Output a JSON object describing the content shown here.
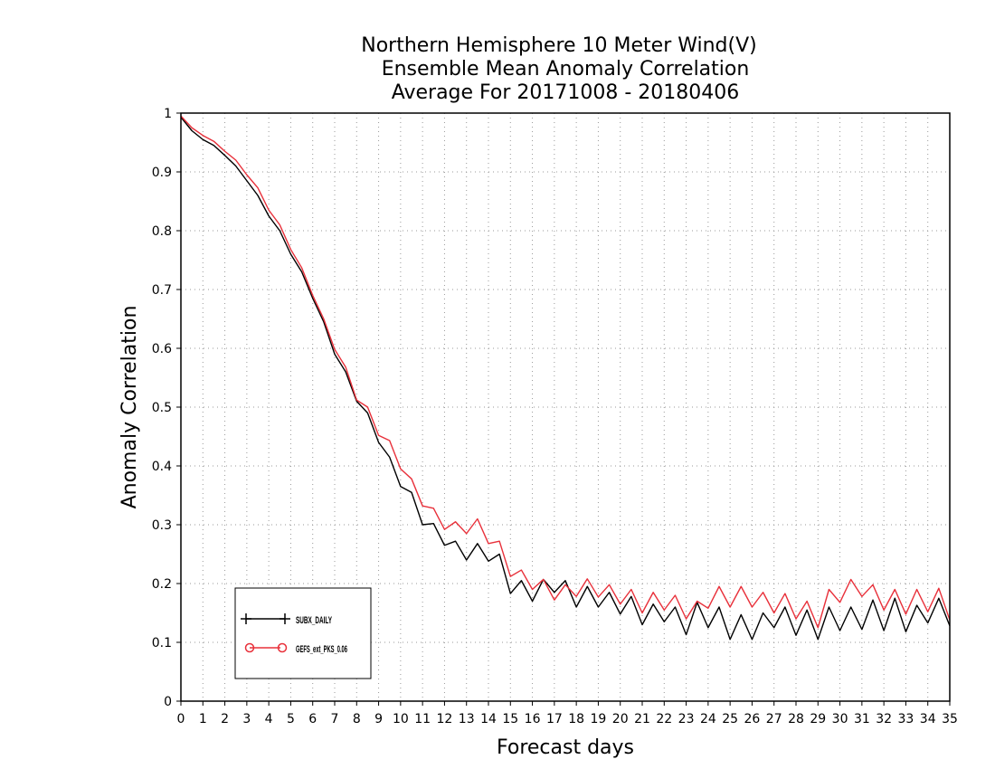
{
  "chart_data": {
    "type": "line",
    "title_lines": [
      "Northern Hemisphere 10 Meter Wind(V)",
      "Ensemble Mean Anomaly Correlation",
      "Average For 20171008 - 20180406"
    ],
    "xlabel": "Forecast days",
    "ylabel": "Anomaly Correlation",
    "xlim": [
      0,
      35
    ],
    "ylim": [
      0,
      1
    ],
    "x_ticks": [
      "0",
      "1",
      "2",
      "3",
      "4",
      "5",
      "6",
      "7",
      "8",
      "9",
      "10",
      "11",
      "12",
      "13",
      "14",
      "15",
      "16",
      "17",
      "18",
      "19",
      "20",
      "21",
      "22",
      "23",
      "24",
      "25",
      "26",
      "27",
      "28",
      "29",
      "30",
      "31",
      "32",
      "33",
      "34",
      "35"
    ],
    "y_ticks": [
      "0",
      "0.1",
      "0.2",
      "0.3",
      "0.4",
      "0.5",
      "0.6",
      "0.7",
      "0.8",
      "0.9",
      "1"
    ],
    "grid": true,
    "legend_position": "bottom-left",
    "x": [
      0,
      0.5,
      1,
      1.5,
      2,
      2.5,
      3,
      3.5,
      4,
      4.5,
      5,
      5.5,
      6,
      6.5,
      7,
      7.5,
      8,
      8.5,
      9,
      9.5,
      10,
      10.5,
      11,
      11.5,
      12,
      12.5,
      13,
      13.5,
      14,
      14.5,
      15,
      15.5,
      16,
      16.5,
      17,
      17.5,
      18,
      18.5,
      19,
      19.5,
      20,
      20.5,
      21,
      21.5,
      22,
      22.5,
      23,
      23.5,
      24,
      24.5,
      25,
      25.5,
      26,
      26.5,
      27,
      27.5,
      28,
      28.5,
      29,
      29.5,
      30,
      30.5,
      31,
      31.5,
      32,
      32.5,
      33,
      33.5,
      34,
      34.5,
      35
    ],
    "series": [
      {
        "name": "SUBX_DAILY",
        "color": "#000000",
        "marker": "plus",
        "values": [
          0.993,
          0.97,
          0.955,
          0.945,
          0.928,
          0.91,
          0.885,
          0.86,
          0.825,
          0.8,
          0.76,
          0.73,
          0.685,
          0.645,
          0.59,
          0.56,
          0.51,
          0.49,
          0.44,
          0.415,
          0.365,
          0.355,
          0.3,
          0.302,
          0.265,
          0.272,
          0.24,
          0.268,
          0.238,
          0.25,
          0.183,
          0.205,
          0.17,
          0.207,
          0.185,
          0.205,
          0.16,
          0.195,
          0.16,
          0.185,
          0.148,
          0.178,
          0.13,
          0.165,
          0.135,
          0.16,
          0.113,
          0.168,
          0.125,
          0.16,
          0.105,
          0.147,
          0.105,
          0.15,
          0.125,
          0.16,
          0.112,
          0.155,
          0.105,
          0.16,
          0.12,
          0.16,
          0.122,
          0.172,
          0.12,
          0.175,
          0.118,
          0.163,
          0.133,
          0.175,
          0.128
        ]
      },
      {
        "name": "GEFS_ext_PKS_0.06",
        "color": "#e8303a",
        "marker": "circle",
        "values": [
          0.995,
          0.975,
          0.962,
          0.952,
          0.935,
          0.92,
          0.895,
          0.873,
          0.835,
          0.81,
          0.768,
          0.737,
          0.69,
          0.65,
          0.598,
          0.568,
          0.512,
          0.5,
          0.452,
          0.443,
          0.395,
          0.378,
          0.332,
          0.328,
          0.292,
          0.305,
          0.285,
          0.31,
          0.268,
          0.272,
          0.212,
          0.223,
          0.19,
          0.207,
          0.172,
          0.198,
          0.178,
          0.208,
          0.177,
          0.198,
          0.165,
          0.19,
          0.15,
          0.185,
          0.155,
          0.18,
          0.14,
          0.17,
          0.158,
          0.195,
          0.16,
          0.195,
          0.16,
          0.185,
          0.15,
          0.183,
          0.14,
          0.17,
          0.125,
          0.19,
          0.168,
          0.207,
          0.178,
          0.198,
          0.155,
          0.19,
          0.148,
          0.19,
          0.152,
          0.192,
          0.138
        ]
      }
    ]
  },
  "legend": {
    "items": [
      {
        "label": "SUBX_DAILY",
        "color": "#000000"
      },
      {
        "label": "GEFS_ext_PKS_0.06",
        "color": "#e8303a"
      }
    ]
  }
}
